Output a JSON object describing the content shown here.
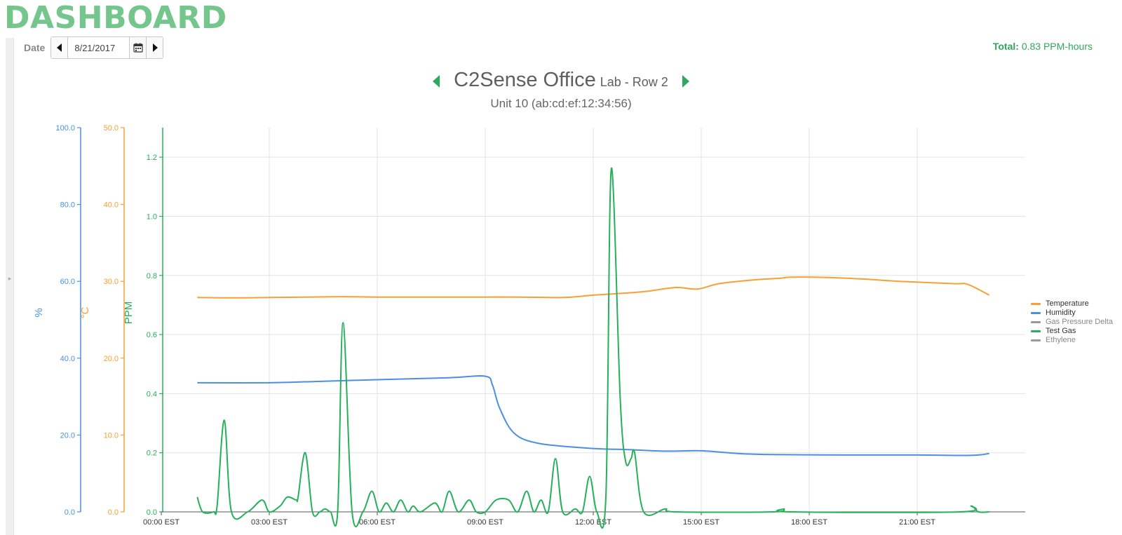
{
  "header": {
    "title": "DASHBOARD"
  },
  "date_picker": {
    "label": "Date",
    "value": "8/21/2017"
  },
  "total": {
    "label": "Total:",
    "value": "0.83 PPM-hours"
  },
  "location": {
    "name": "C2Sense Office",
    "sub": "Lab - Row 2",
    "unit": "Unit 10 (ab:cd:ef:12:34:56)"
  },
  "icons": {
    "prev_date": "triangle-left-icon",
    "calendar": "calendar-icon",
    "next_date": "triangle-right-icon",
    "prev_location": "triangle-left-icon",
    "next_location": "triangle-right-icon",
    "sidebar_toggle": "triangle-right-icon"
  },
  "colors": {
    "brand": "#74c68c",
    "accent": "#2ea85c",
    "humidity": "#4a90e2",
    "temperature": "#f7a035",
    "test_gas": "#25b05a",
    "inactive": "#888888",
    "grid": "#e3e3e3"
  },
  "chart_data": {
    "type": "line",
    "x_unit": "hours",
    "xlim": [
      0,
      24
    ],
    "x_ticks": [
      0,
      3,
      6,
      9,
      12,
      15,
      18,
      21
    ],
    "x_tick_labels": [
      "00:00 EST",
      "03:00 EST",
      "06:00 EST",
      "09:00 EST",
      "12:00 EST",
      "15:00 EST",
      "18:00 EST",
      "21:00 EST"
    ],
    "grid": true,
    "legend_position": "right",
    "legend": [
      {
        "name": "Temperature",
        "color": "#f7a035",
        "active": true
      },
      {
        "name": "Humidity",
        "color": "#4a90e2",
        "active": true
      },
      {
        "name": "Gas Pressure Delta",
        "color": "#999999",
        "active": false
      },
      {
        "name": "Test Gas",
        "color": "#25b05a",
        "active": true
      },
      {
        "name": "Ethylene",
        "color": "#999999",
        "active": false
      }
    ],
    "axes": [
      {
        "id": "humidity",
        "label": "%",
        "ylim": [
          0,
          100
        ],
        "ticks": [
          "0.0",
          "20.0",
          "40.0",
          "60.0",
          "80.0",
          "100.0"
        ],
        "color": "#4a90e2"
      },
      {
        "id": "temperature",
        "label": "°C",
        "ylim": [
          0,
          50
        ],
        "ticks": [
          "0.0",
          "10.0",
          "20.0",
          "30.0",
          "40.0",
          "50.0"
        ],
        "color": "#f7a035"
      },
      {
        "id": "gas",
        "label": "PPM",
        "ylim": [
          0,
          1.3
        ],
        "ticks": [
          "0.0",
          "0.2",
          "0.4",
          "0.6",
          "0.8",
          "1.0",
          "1.2"
        ],
        "color": "#25b05a"
      }
    ],
    "series": [
      {
        "name": "Temperature",
        "axis": "temperature",
        "color": "#f7a035",
        "points": [
          [
            1,
            27.9
          ],
          [
            2,
            27.85
          ],
          [
            3,
            27.9
          ],
          [
            4,
            27.95
          ],
          [
            5,
            28.0
          ],
          [
            6,
            27.95
          ],
          [
            7,
            27.95
          ],
          [
            8,
            27.95
          ],
          [
            9,
            27.95
          ],
          [
            10,
            27.95
          ],
          [
            11.2,
            27.9
          ],
          [
            12,
            28.2
          ],
          [
            13,
            28.5
          ],
          [
            13.5,
            28.7
          ],
          [
            14.3,
            29.2
          ],
          [
            14.9,
            29.0
          ],
          [
            15.5,
            29.7
          ],
          [
            16.5,
            30.2
          ],
          [
            17.2,
            30.4
          ],
          [
            17.5,
            30.55
          ],
          [
            18.5,
            30.5
          ],
          [
            19.5,
            30.3
          ],
          [
            20.5,
            30.0
          ],
          [
            22,
            29.7
          ],
          [
            22.4,
            29.6
          ],
          [
            23,
            28.2
          ]
        ]
      },
      {
        "name": "Humidity",
        "axis": "humidity",
        "color": "#4a90e2",
        "points": [
          [
            1,
            33.6
          ],
          [
            3,
            33.6
          ],
          [
            4.5,
            34.0
          ],
          [
            6,
            34.4
          ],
          [
            8,
            34.9
          ],
          [
            9,
            35.3
          ],
          [
            9.2,
            33.0
          ],
          [
            9.4,
            27.0
          ],
          [
            9.8,
            20.5
          ],
          [
            10.5,
            17.8
          ],
          [
            12,
            16.5
          ],
          [
            13,
            16.2
          ],
          [
            14,
            15.8
          ],
          [
            15,
            15.9
          ],
          [
            16,
            15.2
          ],
          [
            17,
            14.9
          ],
          [
            19,
            14.8
          ],
          [
            21,
            14.8
          ],
          [
            22.5,
            14.7
          ],
          [
            23,
            15.2
          ]
        ]
      },
      {
        "name": "Test Gas",
        "axis": "gas",
        "color": "#25b05a",
        "points": [
          [
            1,
            0.05
          ],
          [
            1.15,
            0
          ],
          [
            1.45,
            0
          ],
          [
            1.55,
            0.02
          ],
          [
            1.75,
            0.31
          ],
          [
            1.95,
            0
          ],
          [
            2.4,
            0
          ],
          [
            2.8,
            0.04
          ],
          [
            3.0,
            0
          ],
          [
            3.3,
            0.02
          ],
          [
            3.5,
            0.05
          ],
          [
            3.75,
            0.04
          ],
          [
            3.8,
            0.05
          ],
          [
            4.0,
            0.2
          ],
          [
            4.2,
            0
          ],
          [
            4.4,
            0
          ],
          [
            4.55,
            0.01
          ],
          [
            4.7,
            0
          ],
          [
            4.9,
            0
          ],
          [
            5.05,
            0.64
          ],
          [
            5.3,
            0
          ],
          [
            5.6,
            0
          ],
          [
            5.85,
            0.07
          ],
          [
            6.05,
            0
          ],
          [
            6.25,
            0.03
          ],
          [
            6.45,
            0
          ],
          [
            6.65,
            0.04
          ],
          [
            6.85,
            0
          ],
          [
            7.0,
            0.02
          ],
          [
            7.2,
            0
          ],
          [
            7.6,
            0.03
          ],
          [
            7.8,
            0
          ],
          [
            8.0,
            0.07
          ],
          [
            8.25,
            0
          ],
          [
            8.55,
            0.04
          ],
          [
            8.75,
            0
          ],
          [
            9.0,
            0
          ],
          [
            9.3,
            0.04
          ],
          [
            9.65,
            0.04
          ],
          [
            9.9,
            0
          ],
          [
            10.15,
            0.07
          ],
          [
            10.35,
            0
          ],
          [
            10.55,
            0.04
          ],
          [
            10.75,
            0
          ],
          [
            10.95,
            0.18
          ],
          [
            11.15,
            0
          ],
          [
            11.5,
            0.01
          ],
          [
            11.7,
            0
          ],
          [
            11.9,
            0.12
          ],
          [
            12.1,
            0
          ],
          [
            12.35,
            0.05
          ],
          [
            12.5,
            1.16
          ],
          [
            12.75,
            0.38
          ],
          [
            12.9,
            0.17
          ],
          [
            13.05,
            0.18
          ],
          [
            13.15,
            0.2
          ],
          [
            13.4,
            0
          ],
          [
            14.0,
            0.01
          ],
          [
            14.3,
            0
          ],
          [
            17.0,
            0
          ],
          [
            17.3,
            0.01
          ],
          [
            17.5,
            0
          ],
          [
            22.2,
            0
          ],
          [
            22.5,
            0.02
          ],
          [
            22.7,
            0
          ],
          [
            23,
            0
          ]
        ]
      }
    ]
  }
}
